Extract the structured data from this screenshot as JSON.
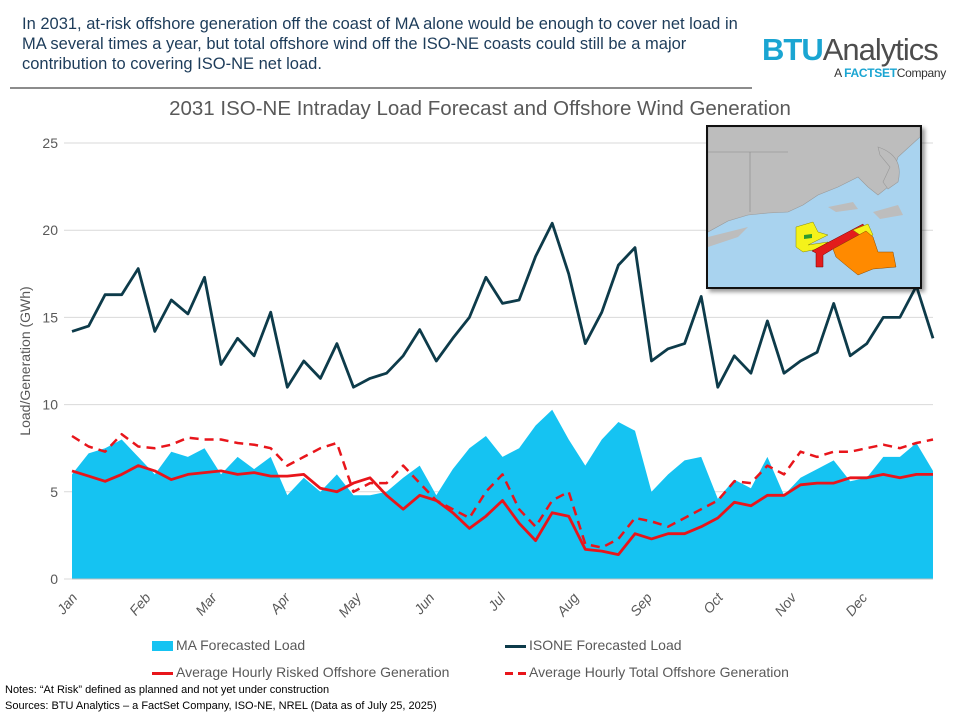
{
  "header": {
    "text": "In 2031, at-risk offshore generation off the coast of MA alone would be enough to cover net load in MA several times a year, but total offshore wind off the ISO-NE coasts could still be a major contribution to covering ISO-NE net load."
  },
  "logo": {
    "btu": "BTU",
    "analytics": "Analytics",
    "sub_a": "A",
    "sub_factset": "FACTSET",
    "sub_company": "Company"
  },
  "map_inset": {
    "description_icon": "offshore-wind-lease-map",
    "colors": {
      "land": "#bdbdbd",
      "water": "#a9d3ef",
      "yellow": "#f5f21a",
      "red": "#e31c1c",
      "orange": "#ff8a00",
      "green": "#2e9a2e"
    }
  },
  "notes": {
    "line1": "Notes: “At Risk” defined as planned and not yet under construction",
    "line2": "Sources: BTU Analytics – a FactSet Company, ISO-NE, NREL (Data as of July 25, 2025)"
  },
  "chart_data": {
    "type": "line",
    "title": "2031 ISO-NE Intraday Load Forecast and Offshore Wind Generation",
    "xlabel": "",
    "ylabel": "Load/Generation (GWh)",
    "ylim": [
      0,
      25
    ],
    "yticks": [
      "0",
      "5",
      "10",
      "15",
      "20",
      "25"
    ],
    "xticks": [
      "Jan",
      "Feb",
      "Mar",
      "Apr",
      "May",
      "Jun",
      "Jul",
      "Aug",
      "Sep",
      "Oct",
      "Nov",
      "Dec"
    ],
    "xtick_dates": [
      "2031-01-01",
      "2031-02-01",
      "2031-03-01",
      "2031-04-01",
      "2031-05-01",
      "2031-06-01",
      "2031-07-01",
      "2031-08-01",
      "2031-09-01",
      "2031-10-01",
      "2031-11-01",
      "2031-12-01"
    ],
    "xlim": [
      "2031-01-01",
      "2031-12-31"
    ],
    "grid": "horizontal",
    "legend_placement": "bottom",
    "x": [
      "2031-01-01",
      "2031-01-08",
      "2031-01-15",
      "2031-01-22",
      "2031-01-29",
      "2031-02-05",
      "2031-02-12",
      "2031-02-19",
      "2031-02-26",
      "2031-03-05",
      "2031-03-12",
      "2031-03-19",
      "2031-03-26",
      "2031-04-02",
      "2031-04-09",
      "2031-04-16",
      "2031-04-23",
      "2031-04-30",
      "2031-05-07",
      "2031-05-14",
      "2031-05-21",
      "2031-05-28",
      "2031-06-04",
      "2031-06-11",
      "2031-06-18",
      "2031-06-25",
      "2031-07-02",
      "2031-07-09",
      "2031-07-16",
      "2031-07-23",
      "2031-07-30",
      "2031-08-06",
      "2031-08-13",
      "2031-08-20",
      "2031-08-27",
      "2031-09-03",
      "2031-09-10",
      "2031-09-17",
      "2031-09-24",
      "2031-10-01",
      "2031-10-08",
      "2031-10-15",
      "2031-10-22",
      "2031-10-29",
      "2031-11-05",
      "2031-11-12",
      "2031-11-19",
      "2031-11-26",
      "2031-12-03",
      "2031-12-10",
      "2031-12-17",
      "2031-12-24",
      "2031-12-31"
    ],
    "series": [
      {
        "name": "MA Forecasted Load",
        "style": "area",
        "color": "#15c3f2",
        "values": [
          6.0,
          7.2,
          7.5,
          8.0,
          7.0,
          6.0,
          7.3,
          7.0,
          7.5,
          6.0,
          7.0,
          6.3,
          7.0,
          4.8,
          5.8,
          5.0,
          6.0,
          4.8,
          4.8,
          5.0,
          5.8,
          6.5,
          4.8,
          6.3,
          7.5,
          8.2,
          7.0,
          7.5,
          8.8,
          9.7,
          8.0,
          6.5,
          8.0,
          9.0,
          8.5,
          5.0,
          6.0,
          6.8,
          7.0,
          4.6,
          5.7,
          5.2,
          7.0,
          4.8,
          5.8,
          6.3,
          6.8,
          5.6,
          5.8,
          7.0,
          7.0,
          7.8,
          6.2
        ]
      },
      {
        "name": "ISONE Forecasted Load",
        "style": "solid",
        "color": "#0d3b4a",
        "values": [
          14.2,
          14.5,
          16.3,
          16.3,
          17.8,
          14.2,
          16.0,
          15.2,
          17.3,
          12.3,
          13.8,
          12.8,
          15.3,
          11.0,
          12.5,
          11.5,
          13.5,
          11.0,
          11.5,
          11.8,
          12.8,
          14.3,
          12.5,
          13.8,
          15.0,
          17.3,
          15.8,
          16.0,
          18.5,
          20.4,
          17.5,
          13.5,
          15.3,
          18.0,
          19.0,
          12.5,
          13.2,
          13.5,
          16.2,
          11.0,
          12.8,
          11.8,
          14.8,
          11.8,
          12.5,
          13.0,
          15.8,
          12.8,
          13.5,
          15.0,
          15.0,
          16.8,
          13.8
        ]
      },
      {
        "name": "Average Hourly Risked Offshore Generation",
        "style": "solid",
        "color": "#e8151b",
        "values": [
          6.2,
          5.9,
          5.6,
          6.0,
          6.5,
          6.2,
          5.7,
          6.0,
          6.1,
          6.2,
          6.0,
          6.1,
          5.9,
          5.9,
          6.0,
          5.2,
          5.0,
          5.5,
          5.8,
          4.8,
          4.0,
          4.8,
          4.5,
          3.8,
          2.9,
          3.6,
          4.5,
          3.2,
          2.2,
          3.8,
          3.6,
          1.7,
          1.6,
          1.4,
          2.6,
          2.3,
          2.6,
          2.6,
          3.0,
          3.5,
          4.4,
          4.2,
          4.8,
          4.8,
          5.4,
          5.5,
          5.5,
          5.8,
          5.8,
          6.0,
          5.8,
          6.0,
          6.0
        ]
      },
      {
        "name": "Average Hourly Total Offshore Generation",
        "style": "dashed",
        "color": "#e8151b",
        "values": [
          8.2,
          7.6,
          7.3,
          8.3,
          7.6,
          7.5,
          7.7,
          8.1,
          8.0,
          8.0,
          7.8,
          7.7,
          7.5,
          6.5,
          7.0,
          7.5,
          7.8,
          5.0,
          5.5,
          5.5,
          6.5,
          5.5,
          4.5,
          4.0,
          3.5,
          5.0,
          6.0,
          4.0,
          3.0,
          4.5,
          5.0,
          2.0,
          1.8,
          2.3,
          3.5,
          3.3,
          3.0,
          3.5,
          4.0,
          4.5,
          5.6,
          5.5,
          6.5,
          6.0,
          7.3,
          7.0,
          7.3,
          7.3,
          7.5,
          7.7,
          7.5,
          7.8,
          8.0
        ]
      }
    ]
  }
}
